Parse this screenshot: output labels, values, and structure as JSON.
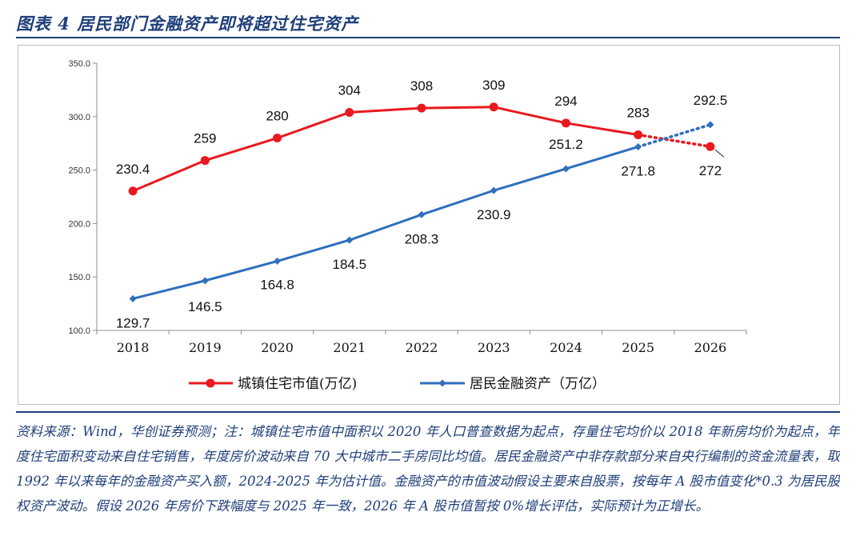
{
  "figure": {
    "title": "图表 4   居民部门金融资产即将超过住宅资产"
  },
  "chart_data": {
    "type": "line",
    "title": "图表 4   居民部门金融资产即将超过住宅资产",
    "xlabel": "",
    "ylabel": "",
    "categories": [
      "2018",
      "2019",
      "2020",
      "2021",
      "2022",
      "2023",
      "2024",
      "2025",
      "2026"
    ],
    "ylim": [
      100,
      350
    ],
    "yticks": [
      "100.0",
      "150.0",
      "200.0",
      "250.0",
      "300.0",
      "350.0"
    ],
    "legend_position": "bottom",
    "series": [
      {
        "name": "城镇住宅市值(万亿)",
        "color": "#e8191f",
        "marker": "circle",
        "values": [
          230.4,
          259,
          280,
          304,
          308,
          309,
          294,
          283,
          272
        ],
        "labels": [
          "230.4",
          "259",
          "280",
          "304",
          "308",
          "309",
          "294",
          "283",
          "272"
        ],
        "forecast_from_index": 7
      },
      {
        "name": "居民金融资产（万亿）",
        "color": "#2e6fbe",
        "marker": "diamond",
        "values": [
          129.7,
          146.5,
          164.8,
          184.5,
          208.3,
          230.9,
          251.2,
          271.8,
          292.5
        ],
        "labels": [
          "129.7",
          "146.5",
          "164.8",
          "184.5",
          "208.3",
          "230.9",
          "251.2",
          "271.8",
          "292.5"
        ],
        "forecast_from_index": 7
      }
    ]
  },
  "notes": {
    "text": "资料来源：Wind，华创证券预测；注：城镇住宅市值中面积以 2020 年人口普查数据为起点，存量住宅均价以 2018 年新房均价为起点，年度住宅面积变动来自住宅销售，年度房价波动来自 70 大中城市二手房同比均值。居民金融资产中非存款部分来自央行编制的资金流量表，取 1992 年以来每年的金融资产买入额，2024-2025 年为估计值。金融资产的市值波动假设主要来自股票，按每年 A 股市值变化*0.3 为居民股权资产波动。假设 2026 年房价下跌幅度与 2025 年一致，2026 年 A 股市值暂按 0%增长评估，实际预计为正增长。"
  }
}
